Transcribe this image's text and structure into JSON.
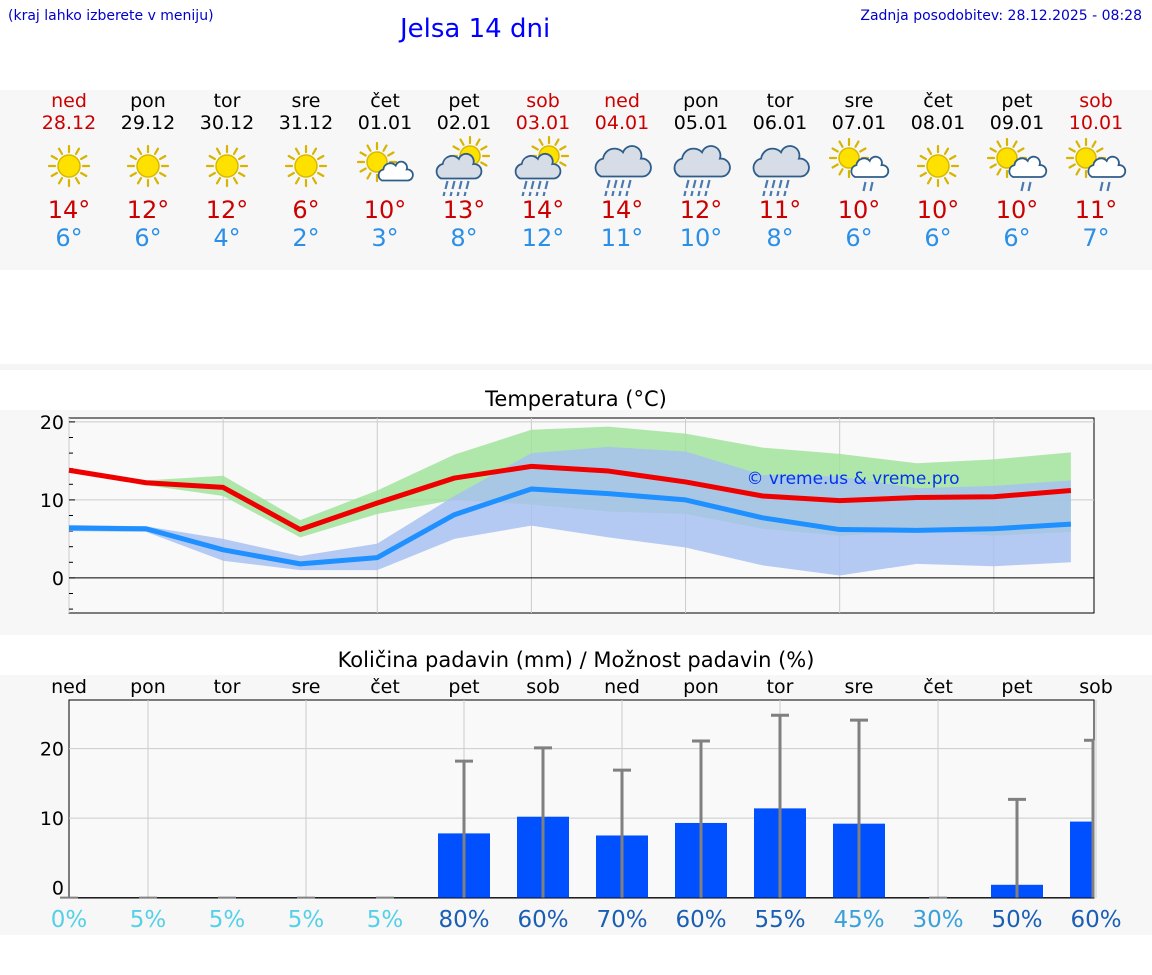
{
  "header": {
    "hint": "(kraj lahko izberete v meniju)",
    "title": "Jelsa 14 dni",
    "updated": "Zadnja posodobitev: 28.12.2025 - 08:28"
  },
  "colors": {
    "weekend": "#cc0000",
    "tmax": "#cc0000",
    "tmin": "#2a8fe6",
    "max_line": "#ee0000",
    "min_line": "#1e90ff",
    "max_band": "#9fe39a",
    "min_band": "#a6bff2",
    "rain_bar": "#0050ff",
    "err_bar": "#808080"
  },
  "days": [
    {
      "name": "ned",
      "date": "28.12",
      "icon": "sun",
      "tmax": "14°",
      "tmin": "6°",
      "weekend": true
    },
    {
      "name": "pon",
      "date": "29.12",
      "icon": "sun",
      "tmax": "12°",
      "tmin": "6°",
      "weekend": false
    },
    {
      "name": "tor",
      "date": "30.12",
      "icon": "sun",
      "tmax": "12°",
      "tmin": "4°",
      "weekend": false
    },
    {
      "name": "sre",
      "date": "31.12",
      "icon": "sun",
      "tmax": "6°",
      "tmin": "2°",
      "weekend": false
    },
    {
      "name": "čet",
      "date": "01.01",
      "icon": "sun-cloud",
      "tmax": "10°",
      "tmin": "3°",
      "weekend": false
    },
    {
      "name": "pet",
      "date": "02.01",
      "icon": "sun-cloud-rain",
      "tmax": "13°",
      "tmin": "8°",
      "weekend": false
    },
    {
      "name": "sob",
      "date": "03.01",
      "icon": "sun-cloud-rain",
      "tmax": "14°",
      "tmin": "12°",
      "weekend": true
    },
    {
      "name": "ned",
      "date": "04.01",
      "icon": "cloud-rain",
      "tmax": "14°",
      "tmin": "11°",
      "weekend": true
    },
    {
      "name": "pon",
      "date": "05.01",
      "icon": "cloud-rain",
      "tmax": "12°",
      "tmin": "10°",
      "weekend": false
    },
    {
      "name": "tor",
      "date": "06.01",
      "icon": "cloud-rain",
      "tmax": "11°",
      "tmin": "8°",
      "weekend": false
    },
    {
      "name": "sre",
      "date": "07.01",
      "icon": "sun-cloud-drizzle",
      "tmax": "10°",
      "tmin": "6°",
      "weekend": false
    },
    {
      "name": "čet",
      "date": "08.01",
      "icon": "sun",
      "tmax": "10°",
      "tmin": "6°",
      "weekend": false
    },
    {
      "name": "pet",
      "date": "09.01",
      "icon": "sun-cloud-drizzle",
      "tmax": "10°",
      "tmin": "6°",
      "weekend": false
    },
    {
      "name": "sob",
      "date": "10.01",
      "icon": "sun-cloud-drizzle",
      "tmax": "11°",
      "tmin": "7°",
      "weekend": true
    }
  ],
  "chart_data": [
    {
      "type": "line",
      "title": "Temperatura (°C)",
      "watermark": "© vreme.us & vreme.pro",
      "ylim": [
        -4.5,
        20.5
      ],
      "yticks": [
        "20",
        "10",
        "0"
      ],
      "x": [
        0,
        1,
        2,
        3,
        4,
        5,
        6,
        7,
        8,
        9,
        10,
        11,
        12,
        13
      ],
      "x_extent": [
        0,
        13.3
      ],
      "series": [
        {
          "name": "max",
          "values": [
            13.8,
            12.2,
            11.6,
            6.2,
            9.6,
            12.8,
            14.3,
            13.7,
            12.3,
            10.5,
            9.9,
            10.3,
            10.4,
            11.2
          ]
        },
        {
          "name": "min",
          "values": [
            6.4,
            6.3,
            3.6,
            1.8,
            2.6,
            8.1,
            11.4,
            10.8,
            10.0,
            7.7,
            6.2,
            6.1,
            6.3,
            6.9
          ]
        }
      ],
      "bands": [
        {
          "name": "max_range",
          "upper": [
            14.0,
            12.5,
            13.1,
            7.4,
            11.2,
            15.8,
            19.0,
            19.4,
            18.5,
            16.7,
            15.9,
            14.7,
            15.2,
            16.1
          ],
          "lower": [
            13.5,
            11.9,
            10.5,
            5.2,
            8.2,
            10.0,
            9.4,
            8.5,
            8.2,
            6.3,
            5.4,
            6.0,
            5.4,
            5.9
          ]
        },
        {
          "name": "min_range",
          "upper": [
            6.8,
            6.6,
            5.0,
            2.8,
            4.4,
            10.5,
            16.0,
            16.8,
            16.2,
            13.2,
            13.0,
            11.5,
            11.8,
            12.5
          ],
          "lower": [
            6.0,
            5.9,
            2.2,
            1.0,
            1.0,
            5.0,
            6.7,
            5.2,
            3.9,
            1.6,
            0.3,
            1.8,
            1.5,
            2.0
          ]
        }
      ]
    },
    {
      "type": "bar",
      "title": "Količina padavin (mm) / Možnost padavin (%)",
      "ylim": [
        -1.5,
        27
      ],
      "yticks": [
        "20",
        "10",
        "0"
      ],
      "categories": [
        "ned",
        "pon",
        "tor",
        "sre",
        "čet",
        "pet",
        "sob",
        "ned",
        "pon",
        "tor",
        "sre",
        "čet",
        "pet",
        "sob"
      ],
      "values": [
        0,
        0,
        0,
        0,
        0,
        7.8,
        10.2,
        7.5,
        9.3,
        11.4,
        9.2,
        0,
        0.4,
        9.5
      ],
      "err_upper": [
        0,
        0,
        0,
        0,
        0,
        18.2,
        20.1,
        16.9,
        21.1,
        24.8,
        24.1,
        0,
        12.7,
        21.2
      ],
      "err_lower": [
        0,
        0,
        0,
        0,
        0,
        0,
        0,
        0,
        0,
        0,
        0,
        0,
        0,
        0
      ],
      "probabilities": [
        "0%",
        "5%",
        "5%",
        "5%",
        "5%",
        "80%",
        "60%",
        "70%",
        "60%",
        "55%",
        "45%",
        "30%",
        "50%",
        "60%"
      ],
      "prob_colors": [
        "#55d0e8",
        "#55d0e8",
        "#55d0e8",
        "#55d0e8",
        "#55d0e8",
        "#1a5fb4",
        "#1a5fb4",
        "#1a5fb4",
        "#1a5fb4",
        "#1a5fb4",
        "#3aa0d8",
        "#3aa0d8",
        "#1a5fb4",
        "#1a5fb4"
      ]
    }
  ]
}
